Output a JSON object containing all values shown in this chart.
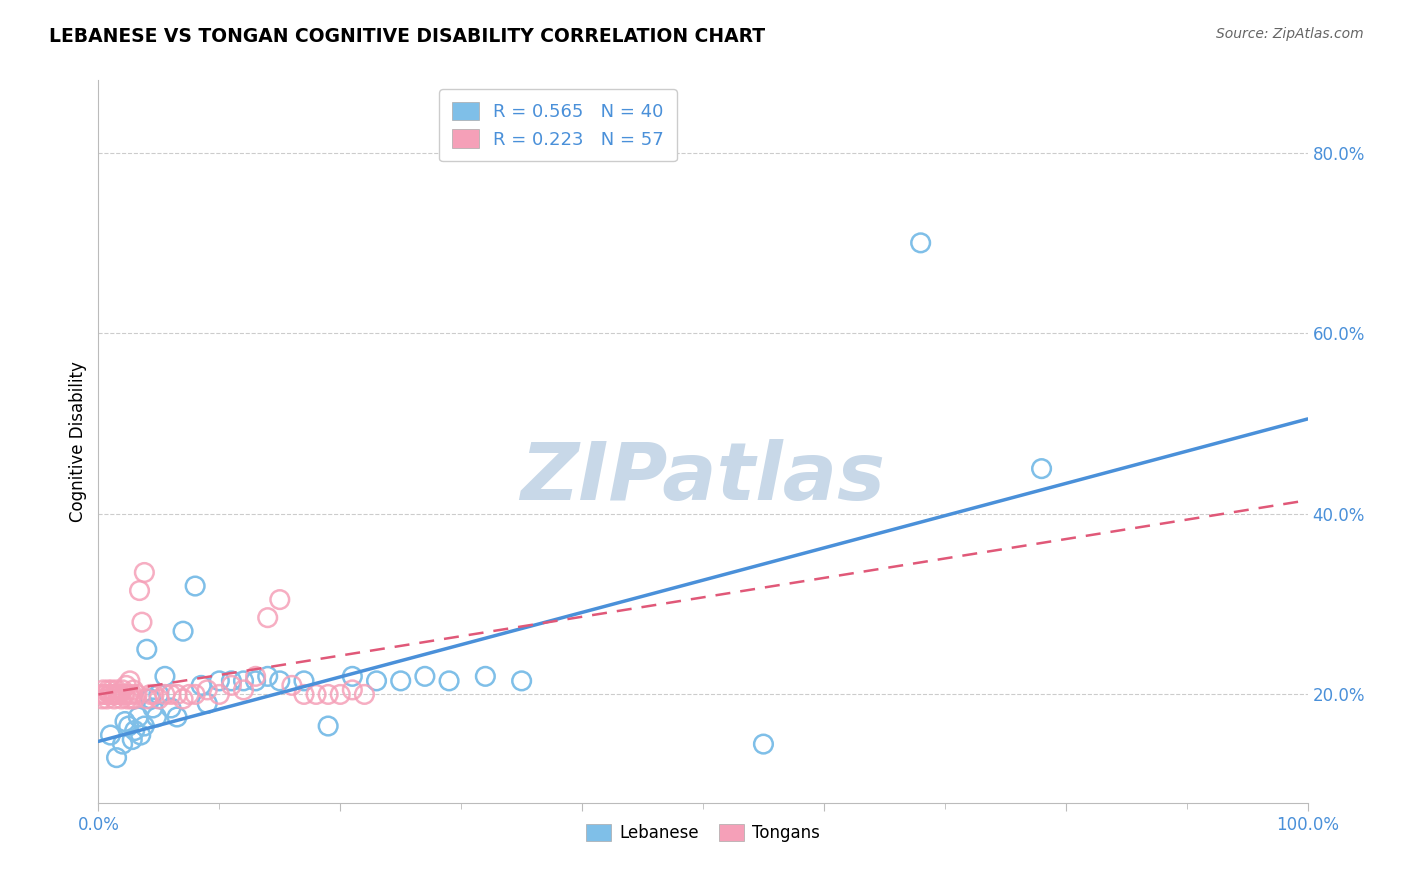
{
  "title": "LEBANESE VS TONGAN COGNITIVE DISABILITY CORRELATION CHART",
  "source": "Source: ZipAtlas.com",
  "ylabel": "Cognitive Disability",
  "xlim": [
    0.0,
    1.0
  ],
  "ylim": [
    0.08,
    0.88
  ],
  "ytick_vals": [
    0.2,
    0.4,
    0.6,
    0.8
  ],
  "ytick_labels": [
    "20.0%",
    "40.0%",
    "60.0%",
    "80.0%"
  ],
  "xtick_vals": [
    0.0,
    0.2,
    0.4,
    0.6,
    0.8,
    1.0
  ],
  "xtick_labels": [
    "0.0%",
    "",
    "",
    "",
    "",
    "100.0%"
  ],
  "legend_label1": "Lebanese",
  "legend_label2": "Tongans",
  "blue_color": "#7fbfe8",
  "pink_color": "#f5a0b8",
  "blue_line_color": "#4a90d9",
  "pink_line_color": "#e05878",
  "axis_color": "#bbbbbb",
  "grid_color": "#cccccc",
  "watermark": "ZIPatlas",
  "watermark_color": "#c8d8e8",
  "blue_line_x0": 0.0,
  "blue_line_y0": 0.148,
  "blue_line_x1": 1.0,
  "blue_line_y1": 0.505,
  "pink_line_x0": 0.0,
  "pink_line_y0": 0.2,
  "pink_line_x1": 1.0,
  "pink_line_y1": 0.415,
  "blue_scatter_x": [
    0.01,
    0.015,
    0.02,
    0.022,
    0.025,
    0.028,
    0.03,
    0.033,
    0.035,
    0.038,
    0.04,
    0.043,
    0.045,
    0.048,
    0.05,
    0.055,
    0.06,
    0.065,
    0.07,
    0.08,
    0.085,
    0.09,
    0.1,
    0.11,
    0.12,
    0.13,
    0.14,
    0.15,
    0.17,
    0.19,
    0.21,
    0.23,
    0.25,
    0.27,
    0.29,
    0.32,
    0.35,
    0.55,
    0.68,
    0.78
  ],
  "blue_scatter_y": [
    0.155,
    0.13,
    0.145,
    0.17,
    0.165,
    0.15,
    0.16,
    0.175,
    0.155,
    0.165,
    0.25,
    0.195,
    0.185,
    0.175,
    0.2,
    0.22,
    0.185,
    0.175,
    0.27,
    0.32,
    0.21,
    0.19,
    0.215,
    0.215,
    0.215,
    0.215,
    0.22,
    0.215,
    0.215,
    0.165,
    0.22,
    0.215,
    0.215,
    0.22,
    0.215,
    0.22,
    0.215,
    0.145,
    0.7,
    0.45
  ],
  "pink_scatter_x": [
    0.002,
    0.003,
    0.004,
    0.005,
    0.006,
    0.007,
    0.008,
    0.009,
    0.01,
    0.011,
    0.012,
    0.013,
    0.014,
    0.015,
    0.016,
    0.017,
    0.018,
    0.019,
    0.02,
    0.021,
    0.022,
    0.023,
    0.024,
    0.025,
    0.026,
    0.027,
    0.028,
    0.029,
    0.03,
    0.032,
    0.034,
    0.036,
    0.038,
    0.04,
    0.043,
    0.046,
    0.05,
    0.055,
    0.06,
    0.065,
    0.07,
    0.075,
    0.08,
    0.09,
    0.1,
    0.11,
    0.12,
    0.13,
    0.14,
    0.15,
    0.16,
    0.17,
    0.18,
    0.19,
    0.2,
    0.21,
    0.22
  ],
  "pink_scatter_y": [
    0.2,
    0.195,
    0.205,
    0.2,
    0.2,
    0.195,
    0.205,
    0.2,
    0.2,
    0.205,
    0.2,
    0.195,
    0.2,
    0.205,
    0.2,
    0.2,
    0.2,
    0.195,
    0.205,
    0.2,
    0.2,
    0.21,
    0.195,
    0.2,
    0.215,
    0.195,
    0.2,
    0.205,
    0.195,
    0.2,
    0.315,
    0.28,
    0.335,
    0.195,
    0.2,
    0.2,
    0.195,
    0.2,
    0.2,
    0.2,
    0.195,
    0.2,
    0.2,
    0.205,
    0.2,
    0.21,
    0.205,
    0.22,
    0.285,
    0.305,
    0.21,
    0.2,
    0.2,
    0.2,
    0.2,
    0.205,
    0.2
  ]
}
